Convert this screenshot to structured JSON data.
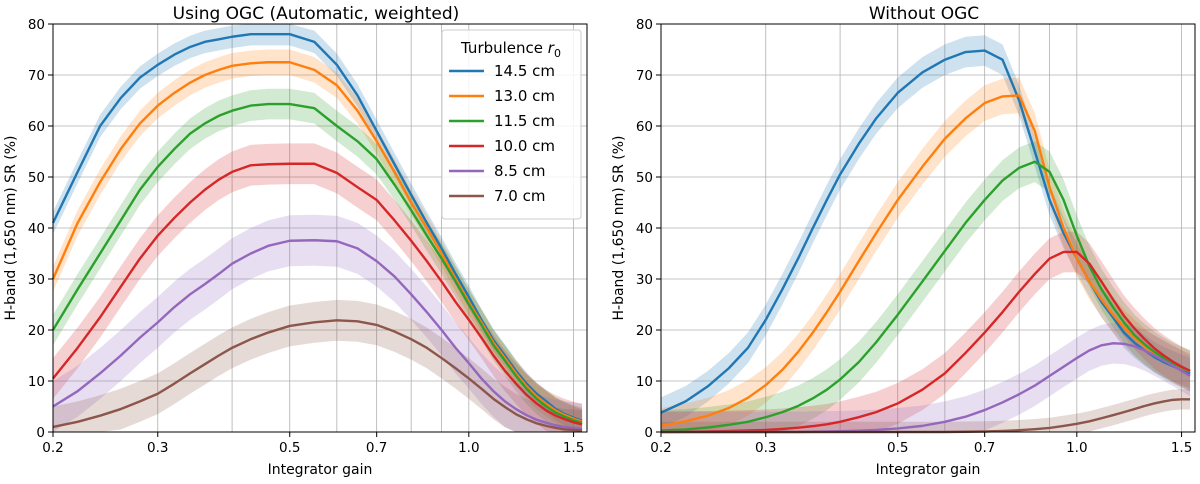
{
  "chart_data": [
    {
      "type": "line",
      "title": "Using OGC (Automatic, weighted)",
      "xlabel": "Integrator gain",
      "ylabel": "H-band (1,650 nm) SR (%)",
      "xscale": "log",
      "xlim": [
        0.2,
        1.58
      ],
      "ylim": [
        0,
        80
      ],
      "xticks": [
        0.2,
        0.3,
        0.5,
        0.7,
        1.0,
        1.5
      ],
      "xtick_labels": [
        "0.2",
        "0.3",
        "0.5",
        "0.7",
        "1.0",
        "1.5"
      ],
      "yticks": [
        0,
        10,
        20,
        30,
        40,
        50,
        60,
        70,
        80
      ],
      "ytick_labels": [
        "0",
        "10",
        "20",
        "30",
        "40",
        "50",
        "60",
        "70",
        "80"
      ],
      "grid": true,
      "legend": {
        "placement": "top-right",
        "title_prefix": "Turbulence ",
        "title_symbol": "r",
        "title_subscript": "0"
      },
      "x": [
        0.2,
        0.22,
        0.24,
        0.26,
        0.28,
        0.3,
        0.32,
        0.34,
        0.36,
        0.38,
        0.4,
        0.43,
        0.46,
        0.5,
        0.55,
        0.6,
        0.65,
        0.7,
        0.75,
        0.8,
        0.85,
        0.9,
        0.95,
        1.0,
        1.05,
        1.1,
        1.15,
        1.2,
        1.25,
        1.3,
        1.35,
        1.4,
        1.45,
        1.5,
        1.55
      ],
      "series": [
        {
          "name": "14.5 cm",
          "color": "#1f77b4",
          "band": 2.2,
          "values": [
            41,
            51,
            60,
            65.5,
            69.5,
            72,
            74,
            75.5,
            76.5,
            77,
            77.5,
            78,
            78,
            78,
            76.5,
            72,
            66,
            59,
            52.5,
            46.5,
            41,
            36,
            31,
            26.5,
            22,
            18,
            15,
            12,
            9.5,
            7.5,
            6,
            4.5,
            3.5,
            2.8,
            2.2
          ]
        },
        {
          "name": "13.0 cm",
          "color": "#ff7f0e",
          "band": 2.5,
          "values": [
            30,
            41,
            49,
            55.5,
            60.5,
            64,
            66.5,
            68.5,
            70,
            71,
            71.8,
            72.3,
            72.5,
            72.5,
            71,
            68,
            63,
            57,
            51,
            45,
            40,
            35,
            30,
            25.5,
            21.5,
            17.5,
            14.5,
            11.5,
            9,
            7,
            5.5,
            4.2,
            3.3,
            2.6,
            2
          ]
        },
        {
          "name": "11.5 cm",
          "color": "#2ca02c",
          "band": 3,
          "values": [
            20,
            28,
            35,
            41.5,
            47.5,
            52,
            55.5,
            58.5,
            60.5,
            62,
            63,
            64,
            64.3,
            64.3,
            63.5,
            60,
            57,
            53.5,
            48.5,
            43.5,
            38.5,
            34,
            29.5,
            25,
            21,
            17,
            14,
            11,
            8.5,
            6.5,
            5,
            3.8,
            3,
            2.3,
            1.8
          ]
        },
        {
          "name": "10.0 cm",
          "color": "#d62728",
          "band": 4,
          "values": [
            10.5,
            16.5,
            22.5,
            28.5,
            34,
            38.5,
            42,
            45,
            47.5,
            49.5,
            51,
            52.3,
            52.5,
            52.6,
            52.6,
            50.8,
            48,
            45.5,
            41.5,
            37.5,
            33.5,
            29.5,
            25.5,
            22,
            18.5,
            15,
            12,
            9.5,
            7.3,
            5.6,
            4.2,
            3.2,
            2.5,
            1.9,
            1.5
          ]
        },
        {
          "name": "8.5 cm",
          "color": "#9467bd",
          "band": 5,
          "values": [
            5,
            8,
            11.5,
            15,
            18.5,
            21.5,
            24.5,
            27,
            29,
            31,
            33,
            35,
            36.5,
            37.5,
            37.6,
            37.4,
            36,
            33.5,
            30.5,
            27,
            23.5,
            20,
            16.5,
            13.5,
            10.5,
            8,
            6,
            4.5,
            3.3,
            2.4,
            1.8,
            1.3,
            1,
            0.8,
            0.6
          ]
        },
        {
          "name": "7.0 cm",
          "color": "#8c564b",
          "band": 4,
          "values": [
            1,
            2,
            3.2,
            4.5,
            6,
            7.5,
            9.5,
            11.5,
            13.3,
            15,
            16.5,
            18.2,
            19.5,
            20.8,
            21.5,
            21.9,
            21.7,
            21,
            19.7,
            18.2,
            16.5,
            14.5,
            12.5,
            10.5,
            8.5,
            6.5,
            4.9,
            3.5,
            2.5,
            1.7,
            1.2,
            0.8,
            0.5,
            0.4,
            0.3
          ]
        }
      ]
    },
    {
      "type": "line",
      "title": "Without OGC",
      "xlabel": "Integrator gain",
      "ylabel": "H-band (1,650 nm) SR (%)",
      "xscale": "log",
      "xlim": [
        0.2,
        1.58
      ],
      "ylim": [
        0,
        80
      ],
      "xticks": [
        0.2,
        0.3,
        0.5,
        0.7,
        1.0,
        1.5
      ],
      "xtick_labels": [
        "0.2",
        "0.3",
        "0.5",
        "0.7",
        "1.0",
        "1.5"
      ],
      "yticks": [
        0,
        10,
        20,
        30,
        40,
        50,
        60,
        70,
        80
      ],
      "ytick_labels": [
        "0",
        "10",
        "20",
        "30",
        "40",
        "50",
        "60",
        "70",
        "80"
      ],
      "grid": true,
      "x": [
        0.2,
        0.22,
        0.24,
        0.26,
        0.28,
        0.3,
        0.32,
        0.34,
        0.36,
        0.38,
        0.4,
        0.43,
        0.46,
        0.5,
        0.55,
        0.6,
        0.65,
        0.7,
        0.75,
        0.8,
        0.85,
        0.9,
        0.95,
        1.0,
        1.05,
        1.1,
        1.15,
        1.2,
        1.25,
        1.3,
        1.35,
        1.4,
        1.45,
        1.5,
        1.55
      ],
      "series": [
        {
          "name": "14.5 cm",
          "color": "#1f77b4",
          "band": 3,
          "values": [
            3.8,
            6,
            9,
            12.5,
            16.5,
            22,
            28,
            34,
            40,
            45.5,
            50.5,
            56.5,
            61.5,
            66.5,
            70.5,
            73,
            74.5,
            74.8,
            73,
            65,
            55,
            45.5,
            39,
            34,
            29.5,
            25.5,
            22.5,
            19.5,
            17.5,
            16,
            14.7,
            13.7,
            12.9,
            12.2,
            11.5
          ]
        },
        {
          "name": "13.0 cm",
          "color": "#ff7f0e",
          "band": 3.5,
          "values": [
            1.2,
            2.1,
            3.2,
            4.7,
            6.7,
            9.2,
            12.2,
            15.7,
            19.5,
            23.5,
            27.5,
            33.5,
            39,
            45.5,
            52,
            57.5,
            61.5,
            64.5,
            65.8,
            66,
            59,
            48,
            40,
            34,
            29.5,
            26,
            23,
            20.5,
            18.5,
            16.8,
            15.4,
            14.3,
            13.4,
            12.6,
            11.9
          ]
        },
        {
          "name": "11.5 cm",
          "color": "#2ca02c",
          "band": 4,
          "values": [
            0.3,
            0.5,
            0.9,
            1.4,
            2,
            2.9,
            3.9,
            5.1,
            6.6,
            8.3,
            10.3,
            13.7,
            17.6,
            23,
            29.5,
            35.5,
            41,
            45.5,
            49.3,
            51.8,
            53,
            51,
            45.5,
            38.5,
            32.5,
            28,
            24.5,
            21.5,
            19,
            17.2,
            15.7,
            14.5,
            13.5,
            12.7,
            12
          ]
        },
        {
          "name": "10.0 cm",
          "color": "#d62728",
          "band": 4,
          "values": [
            0,
            0.05,
            0.1,
            0.2,
            0.3,
            0.4,
            0.6,
            0.85,
            1.15,
            1.5,
            2,
            2.9,
            3.9,
            5.6,
            8.3,
            11.5,
            15.5,
            19.5,
            23.5,
            27.5,
            31,
            34,
            35.3,
            35.3,
            33,
            29.5,
            26,
            22.8,
            20.3,
            18.2,
            16.4,
            15,
            13.8,
            12.8,
            12
          ]
        },
        {
          "name": "8.5 cm",
          "color": "#9467bd",
          "band": 4,
          "values": [
            0,
            0,
            0,
            0,
            0,
            0,
            0,
            0,
            0.05,
            0.1,
            0.15,
            0.25,
            0.4,
            0.7,
            1.2,
            2,
            3,
            4.3,
            5.8,
            7.4,
            9.1,
            11,
            12.8,
            14.5,
            16,
            17,
            17.4,
            17.3,
            16.8,
            16,
            15,
            14,
            13,
            12,
            11
          ]
        },
        {
          "name": "7.0 cm",
          "color": "#8c564b",
          "band": 2,
          "values": [
            0,
            0,
            0,
            0,
            0,
            0,
            0,
            0,
            0,
            0,
            0,
            0,
            0,
            0,
            0,
            0,
            0.05,
            0.1,
            0.2,
            0.35,
            0.55,
            0.8,
            1.2,
            1.6,
            2.1,
            2.7,
            3.3,
            3.9,
            4.5,
            5.1,
            5.6,
            6,
            6.3,
            6.4,
            6.4
          ]
        }
      ]
    }
  ]
}
